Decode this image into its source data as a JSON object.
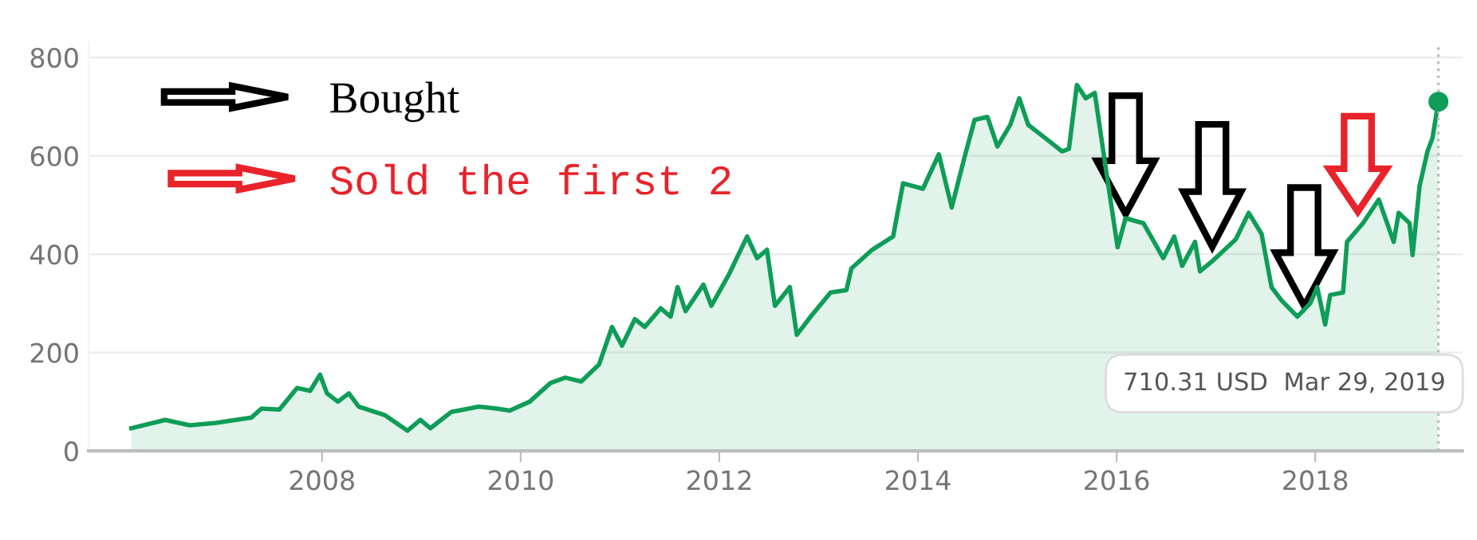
{
  "chart_data": {
    "type": "area",
    "xlim": [
      2005.65,
      2019.48
    ],
    "ylim": [
      0,
      830
    ],
    "xticks": [
      2008,
      2010,
      2012,
      2014,
      2016,
      2018
    ],
    "yticks": [
      0,
      200,
      400,
      600,
      800
    ],
    "grid": "y",
    "marker": "none",
    "series": [
      {
        "color": "#0f9d58",
        "x": [
          2006.08,
          2006.42,
          2006.67,
          2006.93,
          2007.29,
          2007.39,
          2007.57,
          2007.75,
          2007.88,
          2007.98,
          2008.05,
          2008.16,
          2008.27,
          2008.37,
          2008.63,
          2008.86,
          2008.99,
          2009.09,
          2009.3,
          2009.58,
          2009.76,
          2009.89,
          2010.09,
          2010.3,
          2010.45,
          2010.61,
          2010.79,
          2010.92,
          2011.02,
          2011.15,
          2011.25,
          2011.41,
          2011.51,
          2011.58,
          2011.66,
          2011.84,
          2011.92,
          2012.1,
          2012.28,
          2012.38,
          2012.48,
          2012.56,
          2012.71,
          2012.78,
          2012.92,
          2013.12,
          2013.28,
          2013.33,
          2013.54,
          2013.75,
          2013.85,
          2014.05,
          2014.21,
          2014.34,
          2014.47,
          2014.57,
          2014.7,
          2014.8,
          2014.93,
          2015.02,
          2015.11,
          2015.32,
          2015.45,
          2015.52,
          2015.6,
          2015.69,
          2015.78,
          2015.91,
          2016.01,
          2016.09,
          2016.27,
          2016.47,
          2016.58,
          2016.66,
          2016.79,
          2016.84,
          2016.97,
          2017.2,
          2017.33,
          2017.46,
          2017.56,
          2017.66,
          2017.82,
          2017.95,
          2018.02,
          2018.1,
          2018.15,
          2018.28,
          2018.32,
          2018.48,
          2018.64,
          2018.79,
          2018.84,
          2018.95,
          2018.98,
          2019.05,
          2019.13,
          2019.18,
          2019.24
        ],
        "values": [
          46,
          63,
          52,
          57,
          68,
          86,
          84,
          128,
          122,
          155,
          117,
          100,
          117,
          90,
          73,
          41,
          63,
          46,
          79,
          90,
          86,
          82,
          100,
          138,
          149,
          141,
          176,
          252,
          214,
          268,
          252,
          290,
          273,
          333,
          284,
          338,
          295,
          360,
          436,
          392,
          409,
          295,
          333,
          236,
          273,
          322,
          327,
          371,
          409,
          436,
          544,
          533,
          603,
          495,
          598,
          673,
          679,
          619,
          663,
          717,
          663,
          630,
          609,
          614,
          744,
          717,
          728,
          549,
          414,
          473,
          463,
          392,
          436,
          376,
          425,
          365,
          387,
          430,
          484,
          441,
          333,
          306,
          273,
          300,
          333,
          257,
          317,
          322,
          425,
          463,
          511,
          425,
          484,
          463,
          398,
          538,
          609,
          636,
          710
        ]
      }
    ],
    "ref_lines": [
      {
        "axis": "x",
        "value": 2019.24,
        "color": "#bdbdbd",
        "line_style": "dotted"
      }
    ],
    "annotations": [
      "Bought",
      "Sold the first 2",
      "710.31 USD  Mar 29, 2019"
    ]
  }
}
